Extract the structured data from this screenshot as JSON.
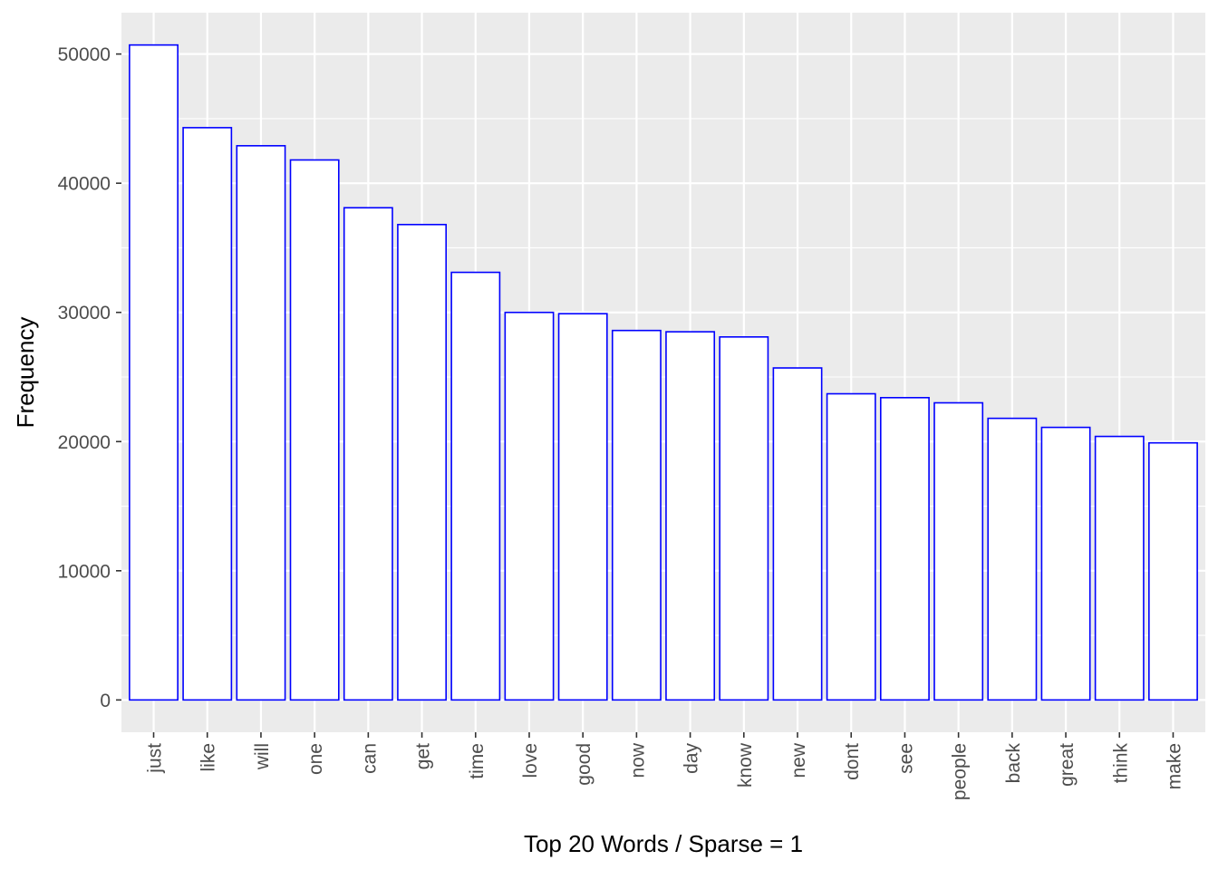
{
  "chart_data": {
    "type": "bar",
    "categories": [
      "just",
      "like",
      "will",
      "one",
      "can",
      "get",
      "time",
      "love",
      "good",
      "now",
      "day",
      "know",
      "new",
      "dont",
      "see",
      "people",
      "back",
      "great",
      "think",
      "make"
    ],
    "values": [
      50700,
      44300,
      42900,
      41800,
      38100,
      36800,
      33100,
      30000,
      29900,
      28600,
      28500,
      28100,
      25700,
      23700,
      23400,
      23000,
      21800,
      21100,
      20400,
      19900
    ],
    "title": "",
    "xlabel": "Top 20 Words / Sparse = 1",
    "ylabel": "Frequency",
    "ylim": [
      -2500,
      53200
    ],
    "yticks": [
      0,
      10000,
      20000,
      30000,
      40000,
      50000
    ],
    "grid": true,
    "colors": {
      "panel_background": "#ebebeb",
      "grid": "#ffffff",
      "bar_fill": "#ffffff",
      "bar_outline": "#0000ff",
      "tick_label": "#4d4d4d"
    }
  }
}
